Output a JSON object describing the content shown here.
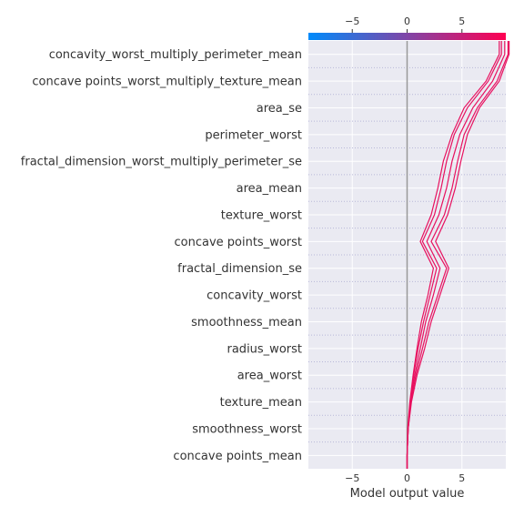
{
  "chart_data": {
    "type": "line",
    "xlabel": "Model output value",
    "xlim": [
      -9,
      9
    ],
    "xticks": [
      -5,
      0,
      5
    ],
    "base_value": 0,
    "features": [
      "concavity_worst_multiply_perimeter_mean",
      "concave points_worst_multiply_texture_mean",
      "area_se",
      "perimeter_worst",
      "fractal_dimension_worst_multiply_perimeter_se",
      "area_mean",
      "texture_worst",
      "concave points_worst",
      "fractal_dimension_se",
      "concavity_worst",
      "smoothness_mean",
      "radius_worst",
      "area_worst",
      "texture_mean",
      "smoothness_worst",
      "concave points_mean"
    ],
    "series": [
      {
        "values": [
          0,
          0.1,
          0.35,
          0.8,
          1.4,
          2.0,
          2.8,
          3.6,
          2.2,
          3.4,
          4.1,
          4.6,
          5.2,
          6.4,
          8.2,
          9.2
        ]
      },
      {
        "values": [
          0,
          0.1,
          0.3,
          0.7,
          1.2,
          1.7,
          2.4,
          3.0,
          1.8,
          2.9,
          3.6,
          4.1,
          4.8,
          6.0,
          7.8,
          8.9
        ]
      },
      {
        "values": [
          0,
          0.1,
          0.3,
          0.6,
          1.0,
          1.5,
          2.1,
          2.7,
          1.4,
          2.5,
          3.1,
          3.6,
          4.3,
          5.5,
          7.4,
          8.6
        ]
      },
      {
        "values": [
          0,
          0.05,
          0.25,
          0.55,
          0.9,
          1.3,
          1.9,
          2.4,
          1.2,
          2.2,
          2.8,
          3.3,
          4.1,
          5.2,
          7.2,
          8.4
        ]
      },
      {
        "values": [
          0,
          0.1,
          0.4,
          0.9,
          1.6,
          2.2,
          3.0,
          3.8,
          2.6,
          3.7,
          4.4,
          4.9,
          5.5,
          6.6,
          8.4,
          9.3
        ]
      }
    ],
    "colorbar": {
      "colors": [
        "#008bfb",
        "#ff0052"
      ],
      "range": [
        -9,
        9
      ]
    },
    "line_color": "#e8115f"
  }
}
